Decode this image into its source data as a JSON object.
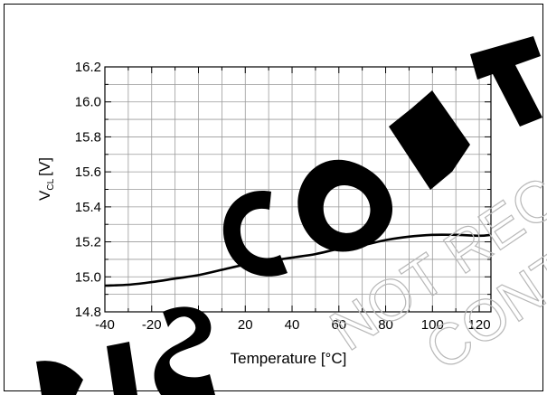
{
  "chart_data": {
    "type": "line",
    "xlabel": "Temperature [°C]",
    "ylabel": "V",
    "ylabel_subscript": "CL",
    "ylabel_unit": "[V]",
    "xlim": [
      -40,
      125
    ],
    "ylim": [
      14.8,
      16.2
    ],
    "x_major_ticks": [
      -40,
      -20,
      0,
      20,
      40,
      60,
      80,
      100,
      120
    ],
    "x_tick_labels": [
      "-40",
      "-20",
      "0",
      "20",
      "40",
      "60",
      "80",
      "100",
      "120"
    ],
    "y_major_ticks": [
      14.8,
      15.0,
      15.2,
      15.4,
      15.6,
      15.8,
      16.0,
      16.2
    ],
    "y_tick_labels": [
      "14.8",
      "15.0",
      "15.2",
      "15.4",
      "15.6",
      "15.8",
      "16.0",
      "16.2"
    ],
    "grid": true,
    "grid_step": {
      "x": 10,
      "y": 0.1
    },
    "series": [
      {
        "color": "#000000",
        "x": [
          -40,
          -30,
          -20,
          -10,
          0,
          10,
          20,
          30,
          40,
          50,
          60,
          70,
          80,
          90,
          100,
          110,
          120,
          125
        ],
        "y": [
          14.95,
          14.955,
          14.97,
          14.99,
          15.01,
          15.04,
          15.07,
          15.09,
          15.11,
          15.13,
          15.16,
          15.18,
          15.21,
          15.23,
          15.24,
          15.24,
          15.235,
          15.24
        ]
      }
    ]
  },
  "watermark": {
    "text": "DISCONTINUED, NOT RECOMMENDED FOR NEW DESIGN",
    "color": "#000000"
  }
}
